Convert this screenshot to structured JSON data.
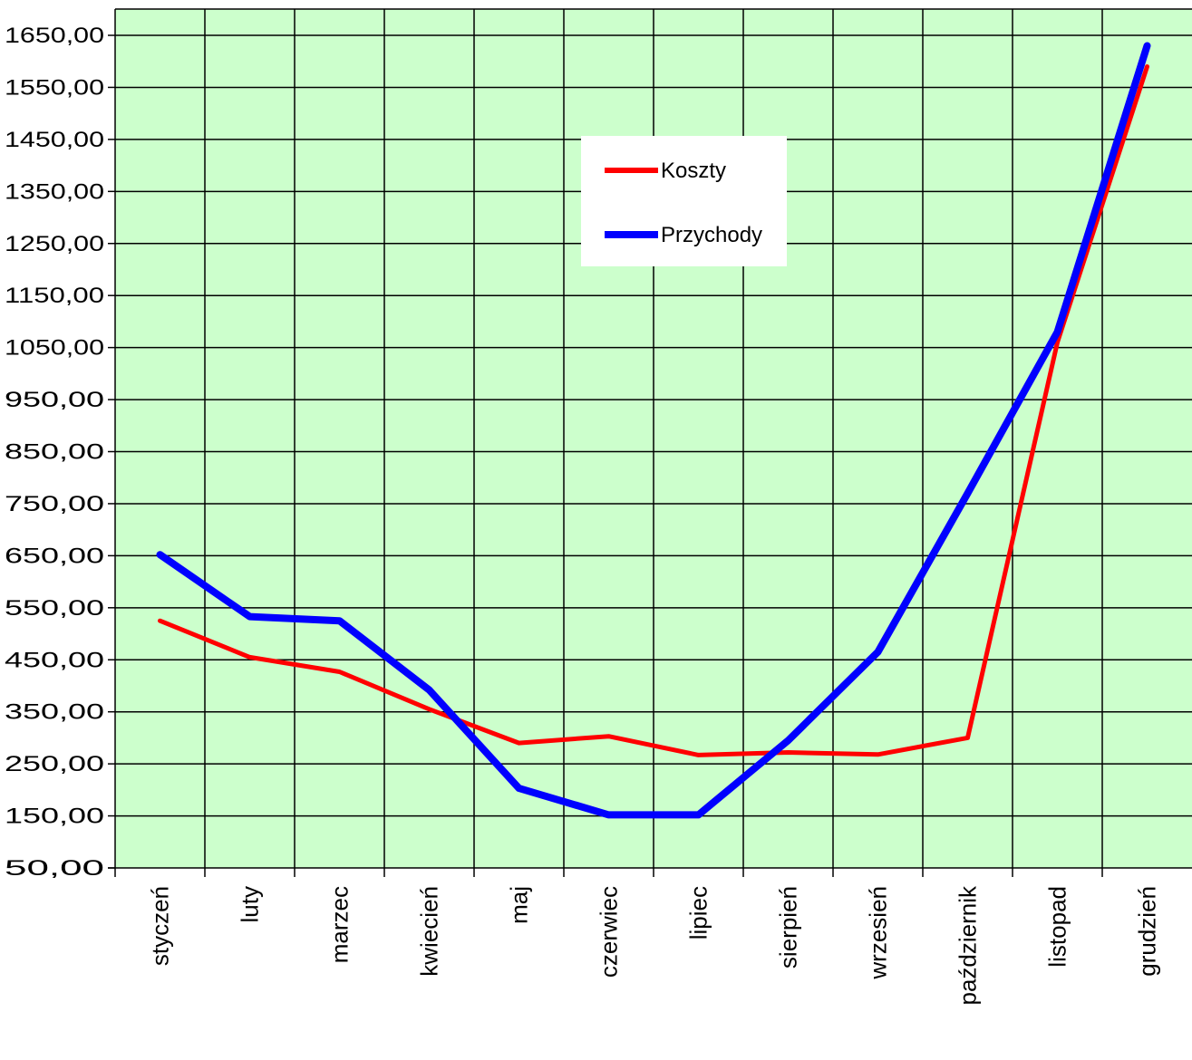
{
  "chart_data": {
    "type": "line",
    "categories": [
      "styczeń",
      "luty",
      "marzec",
      "kwiecień",
      "maj",
      "czerwiec",
      "lipiec",
      "sierpień",
      "wrzesień",
      "październik",
      "listopad",
      "grudzień"
    ],
    "series": [
      {
        "name": "Koszty",
        "color": "#ff0000",
        "values": [
          525,
          455,
          427,
          355,
          290,
          303,
          267,
          272,
          268,
          300,
          1060,
          1590
        ]
      },
      {
        "name": "Przychody",
        "color": "#0000ff",
        "values": [
          652,
          533,
          525,
          392,
          203,
          152,
          152,
          295,
          465,
          770,
          1080,
          1630
        ]
      }
    ],
    "y_ticks": [
      "50,00",
      "150,00",
      "250,00",
      "350,00",
      "450,00",
      "550,00",
      "650,00",
      "750,00",
      "850,00",
      "950,00",
      "1050,00",
      "1150,00",
      "1250,00",
      "1350,00",
      "1450,00",
      "1550,00",
      "1650,00"
    ],
    "ylim": [
      50,
      1650
    ],
    "grid": true,
    "legend": "top-center",
    "plot_background": "#ccffcc",
    "title": "",
    "xlabel": "",
    "ylabel": ""
  }
}
